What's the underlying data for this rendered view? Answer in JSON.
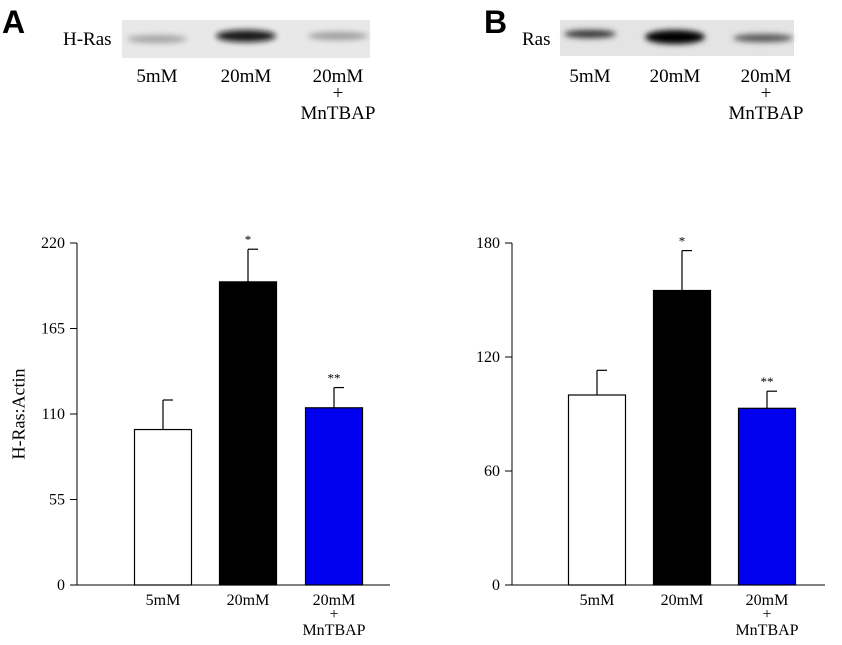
{
  "figure": {
    "panels": [
      {
        "letter": "A",
        "blot": {
          "label": "H-Ras",
          "lanes": [
            "5mM",
            "20mM",
            "20mM",
            "+",
            "MnTBAP"
          ],
          "band_intensity": [
            0.45,
            0.95,
            0.5
          ]
        }
      },
      {
        "letter": "B",
        "blot": {
          "label": "Ras",
          "lanes": [
            "5mM",
            "20mM",
            "20mM",
            "+",
            "MnTBAP"
          ],
          "band_intensity": [
            0.6,
            1.0,
            0.5
          ]
        }
      }
    ],
    "colors": {
      "white_bar": "#ffffff",
      "black_bar": "#000000",
      "blue_bar": "#0000ee",
      "outline": "#000000"
    }
  },
  "chart_data": [
    {
      "type": "bar",
      "panel": "A",
      "categories": [
        "5mM",
        "20mM",
        "20mM + MnTBAP"
      ],
      "category_lines": [
        [
          "5mM"
        ],
        [
          "20mM"
        ],
        [
          "20mM",
          "MnTBAP"
        ]
      ],
      "values": [
        100,
        195,
        114
      ],
      "errors": [
        19,
        21,
        13
      ],
      "significance": [
        "",
        "*",
        "**"
      ],
      "ylabel": "H-Ras:Actin",
      "ylim": [
        0,
        220
      ],
      "yticks": [
        0,
        55,
        110,
        165,
        220
      ],
      "ytick_labels": [
        "0",
        "55",
        "110",
        "165",
        "220"
      ],
      "bar_colors": [
        "#ffffff",
        "#000000",
        "#0000ee"
      ]
    },
    {
      "type": "bar",
      "panel": "B",
      "categories": [
        "5mM",
        "20mM",
        "20mM + MnTBAP"
      ],
      "category_lines": [
        [
          "5mM"
        ],
        [
          "20mM"
        ],
        [
          "20mM",
          "MnTBAP"
        ]
      ],
      "values": [
        100,
        155,
        93
      ],
      "errors": [
        13,
        21,
        9
      ],
      "significance": [
        "",
        "*",
        "**"
      ],
      "ylabel": "",
      "ylim": [
        0,
        180
      ],
      "yticks": [
        0,
        60,
        120,
        180
      ],
      "ytick_labels": [
        "0",
        "60",
        "120",
        "180"
      ],
      "bar_colors": [
        "#ffffff",
        "#000000",
        "#0000ee"
      ]
    }
  ]
}
